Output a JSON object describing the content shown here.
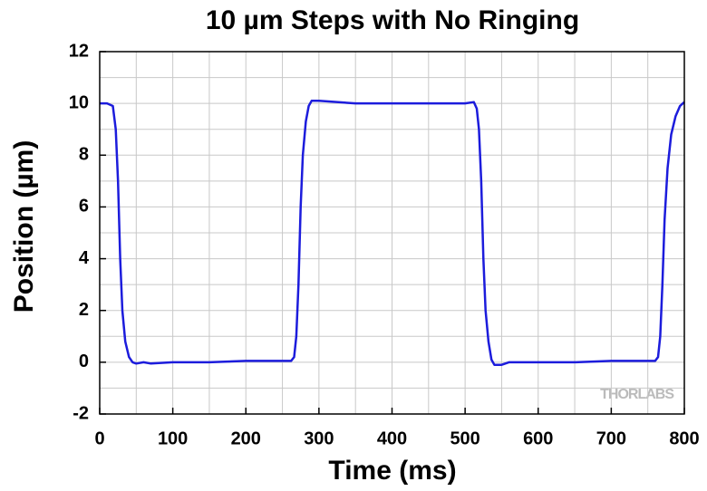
{
  "chart_data": {
    "type": "line",
    "title": "10 µm Steps with No Ringing",
    "x_label": "Time (ms)",
    "y_label": "Position (µm)",
    "watermark": "THORLABS",
    "xlim": [
      0,
      800
    ],
    "ylim": [
      -2,
      12
    ],
    "xticks": [
      0,
      100,
      200,
      300,
      400,
      500,
      600,
      700,
      800
    ],
    "yticks": [
      -2,
      0,
      2,
      4,
      6,
      8,
      10,
      12
    ],
    "xgrid": [
      0,
      50,
      100,
      150,
      200,
      250,
      300,
      350,
      400,
      450,
      500,
      550,
      600,
      650,
      700,
      750,
      800
    ],
    "ygrid": [
      -2,
      -1,
      0,
      1,
      2,
      3,
      4,
      5,
      6,
      7,
      8,
      9,
      10,
      11,
      12
    ],
    "grid": true,
    "series": [
      {
        "name": "Position",
        "color": "#1c1cdc",
        "x": [
          0,
          10,
          18,
          22,
          25,
          28,
          31,
          35,
          40,
          45,
          50,
          60,
          70,
          100,
          150,
          200,
          250,
          262,
          266,
          269,
          272,
          275,
          278,
          282,
          286,
          290,
          300,
          350,
          400,
          450,
          500,
          512,
          516,
          519,
          522,
          525,
          528,
          532,
          536,
          540,
          550,
          560,
          600,
          650,
          700,
          760,
          764,
          767,
          770,
          773,
          777,
          782,
          788,
          794,
          800
        ],
        "values": [
          10,
          10,
          9.9,
          9,
          7,
          4,
          2,
          0.8,
          0.2,
          0,
          -0.05,
          0,
          -0.05,
          0,
          0,
          0.05,
          0.05,
          0.05,
          0.2,
          1,
          3,
          6,
          8,
          9.3,
          9.9,
          10.1,
          10.1,
          10,
          10,
          10,
          10,
          10.05,
          9.8,
          9,
          7,
          4,
          2,
          0.8,
          0.1,
          -0.1,
          -0.1,
          0,
          0,
          0,
          0.05,
          0.05,
          0.2,
          1,
          3,
          5.5,
          7.5,
          8.8,
          9.5,
          9.9,
          10.05
        ]
      }
    ]
  }
}
